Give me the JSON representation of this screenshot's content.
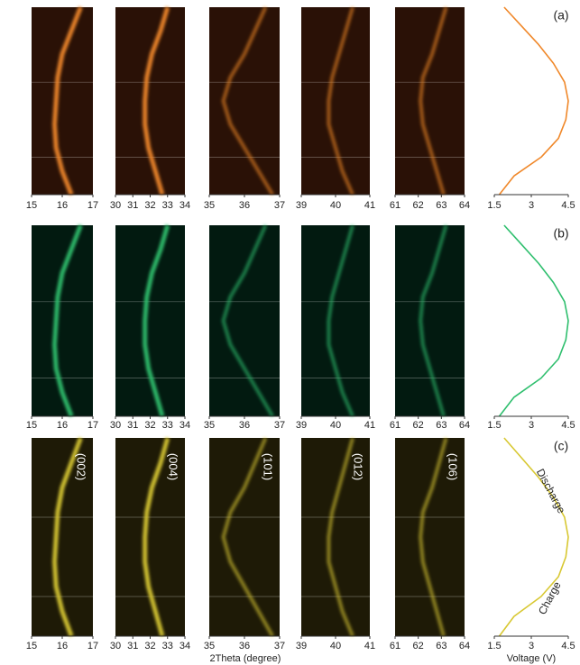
{
  "chart_data": [
    {
      "type": "heatmap",
      "panel_label": "(a)",
      "background": "#2a1106",
      "color": "#f0882a",
      "panels": [
        {
          "xlim": [
            15,
            17
          ],
          "xticks": [
            15,
            16,
            17
          ],
          "peak": [
            16.6,
            16.3,
            16.0,
            15.85,
            15.8,
            15.75,
            15.8,
            16.0,
            16.3
          ]
        },
        {
          "xlim": [
            30,
            34
          ],
          "xticks": [
            30,
            31,
            32,
            33,
            34
          ],
          "peak": [
            33.0,
            32.6,
            32.1,
            31.8,
            31.7,
            31.7,
            31.9,
            32.3,
            32.7
          ]
        },
        {
          "xlim": [
            35,
            37
          ],
          "xticks": [
            35,
            36,
            37
          ],
          "peak": [
            36.6,
            36.3,
            36.0,
            35.6,
            35.4,
            35.6,
            36.0,
            36.4,
            36.8
          ]
        },
        {
          "xlim": [
            39,
            41
          ],
          "xticks": [
            39,
            40,
            41
          ],
          "peak": [
            40.5,
            40.3,
            40.1,
            39.9,
            39.8,
            39.8,
            40.0,
            40.2,
            40.5
          ]
        },
        {
          "xlim": [
            61,
            64
          ],
          "xticks": [
            61,
            62,
            63,
            64
          ],
          "peak": [
            63.2,
            62.9,
            62.6,
            62.2,
            62.1,
            62.2,
            62.5,
            62.8,
            63.1
          ]
        }
      ],
      "voltage": {
        "xlim": [
          1.5,
          4.5
        ],
        "xticks": [
          1.5,
          3,
          4.5
        ],
        "values": [
          1.9,
          2.6,
          3.3,
          3.9,
          4.35,
          4.5,
          4.4,
          4.1,
          3.4,
          2.3,
          1.7
        ]
      }
    },
    {
      "type": "heatmap",
      "panel_label": "(b)",
      "background": "#021a10",
      "color": "#2fbf6e",
      "panels": [
        {
          "xlim": [
            15,
            17
          ],
          "xticks": [
            15,
            16,
            17
          ],
          "peak": [
            16.6,
            16.3,
            16.0,
            15.85,
            15.8,
            15.75,
            15.8,
            16.0,
            16.3
          ]
        },
        {
          "xlim": [
            30,
            34
          ],
          "xticks": [
            30,
            31,
            32,
            33,
            34
          ],
          "peak": [
            33.0,
            32.6,
            32.1,
            31.8,
            31.7,
            31.7,
            31.9,
            32.3,
            32.7
          ]
        },
        {
          "xlim": [
            35,
            37
          ],
          "xticks": [
            35,
            36,
            37
          ],
          "peak": [
            36.6,
            36.3,
            36.0,
            35.6,
            35.4,
            35.6,
            36.0,
            36.4,
            36.8
          ]
        },
        {
          "xlim": [
            39,
            41
          ],
          "xticks": [
            39,
            40,
            41
          ],
          "peak": [
            40.5,
            40.3,
            40.1,
            39.9,
            39.8,
            39.8,
            40.0,
            40.2,
            40.5
          ]
        },
        {
          "xlim": [
            61,
            64
          ],
          "xticks": [
            61,
            62,
            63,
            64
          ],
          "peak": [
            63.2,
            62.9,
            62.6,
            62.2,
            62.1,
            62.2,
            62.5,
            62.8,
            63.1
          ]
        }
      ],
      "voltage": {
        "xlim": [
          1.5,
          4.5
        ],
        "xticks": [
          1.5,
          3,
          4.5
        ],
        "values": [
          1.9,
          2.6,
          3.3,
          3.9,
          4.35,
          4.5,
          4.4,
          4.1,
          3.4,
          2.3,
          1.7
        ]
      }
    },
    {
      "type": "heatmap",
      "panel_label": "(c)",
      "background": "#1e1a06",
      "color": "#d8c832",
      "xlabel": "2Theta (degree)",
      "panels": [
        {
          "label": "(002)",
          "xlim": [
            15,
            17
          ],
          "xticks": [
            15,
            16,
            17
          ],
          "peak": [
            16.6,
            16.3,
            16.0,
            15.85,
            15.8,
            15.75,
            15.8,
            16.0,
            16.3
          ]
        },
        {
          "label": "(004)",
          "xlim": [
            30,
            34
          ],
          "xticks": [
            30,
            31,
            32,
            33,
            34
          ],
          "peak": [
            33.0,
            32.6,
            32.1,
            31.8,
            31.7,
            31.7,
            31.9,
            32.3,
            32.7
          ]
        },
        {
          "label": "(101)",
          "xlim": [
            35,
            37
          ],
          "xticks": [
            35,
            36,
            37
          ],
          "peak": [
            36.6,
            36.3,
            36.0,
            35.6,
            35.4,
            35.6,
            36.0,
            36.4,
            36.8
          ]
        },
        {
          "label": "(012)",
          "xlim": [
            39,
            41
          ],
          "xticks": [
            39,
            40,
            41
          ],
          "peak": [
            40.5,
            40.3,
            40.1,
            39.9,
            39.8,
            39.8,
            40.0,
            40.2,
            40.5
          ]
        },
        {
          "label": "(106)",
          "xlim": [
            61,
            64
          ],
          "xticks": [
            61,
            62,
            63,
            64
          ],
          "peak": [
            63.2,
            62.9,
            62.6,
            62.2,
            62.1,
            62.2,
            62.5,
            62.8,
            63.1
          ]
        }
      ],
      "voltage": {
        "xlabel": "Voltage (V)",
        "annotations": [
          "Discharge",
          "Charge"
        ],
        "xlim": [
          1.5,
          4.5
        ],
        "xticks": [
          1.5,
          3,
          4.5
        ],
        "values": [
          1.9,
          2.6,
          3.3,
          3.9,
          4.35,
          4.5,
          4.4,
          4.1,
          3.4,
          2.3,
          1.7
        ]
      }
    }
  ]
}
